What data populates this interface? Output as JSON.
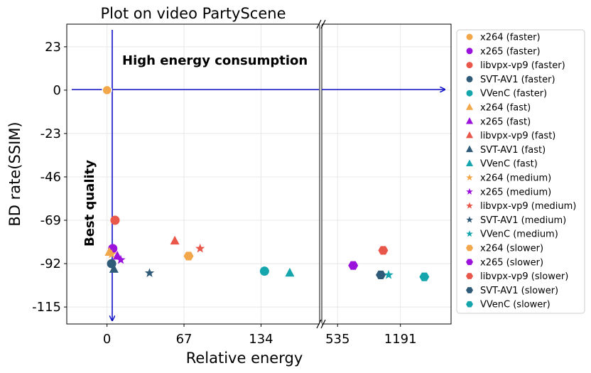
{
  "chart_data": {
    "type": "scatter",
    "title": "Plot on video PartyScene",
    "xlabel": "Relative energy",
    "ylabel": "BD rate(SSIM)",
    "x_axis_broken": true,
    "x_ticks_left": [
      0,
      67,
      134
    ],
    "x_ticks_right": [
      535,
      1191
    ],
    "xlim_left": [
      -35,
      185
    ],
    "xlim_right": [
      370,
      1720
    ],
    "y_ticks": [
      23,
      0,
      -23,
      -46,
      -69,
      -92,
      -115
    ],
    "ylim": [
      -124,
      35
    ],
    "grid": true,
    "legend_position": "outside-right",
    "annotations": [
      "High energy consumption",
      "Best quality"
    ],
    "series": [
      {
        "name": "x264 (faster)",
        "color": "#f2a74b",
        "marker": "circle",
        "points": [
          [
            0,
            0
          ]
        ]
      },
      {
        "name": "x265 (faster)",
        "color": "#9c12dd",
        "marker": "circle",
        "points": [
          [
            5,
            -84
          ]
        ]
      },
      {
        "name": "libvpx-vp9 (faster)",
        "color": "#e8574a",
        "marker": "circle",
        "points": [
          [
            7,
            -69
          ]
        ]
      },
      {
        "name": "SVT-AV1 (faster)",
        "color": "#2f5b78",
        "marker": "circle",
        "points": [
          [
            4,
            -92
          ]
        ]
      },
      {
        "name": "VVenC (faster)",
        "color": "#14a5ad",
        "marker": "circle",
        "points": [
          [
            137,
            -96
          ]
        ]
      },
      {
        "name": "x264 (fast)",
        "color": "#f2a74b",
        "marker": "triangle",
        "points": [
          [
            2,
            -86
          ]
        ]
      },
      {
        "name": "x265 (fast)",
        "color": "#9c12dd",
        "marker": "triangle",
        "points": [
          [
            9,
            -88
          ]
        ]
      },
      {
        "name": "libvpx-vp9 (fast)",
        "color": "#e8574a",
        "marker": "triangle",
        "points": [
          [
            59,
            -80
          ]
        ]
      },
      {
        "name": "SVT-AV1 (fast)",
        "color": "#2f5b78",
        "marker": "triangle",
        "points": [
          [
            6,
            -95
          ]
        ]
      },
      {
        "name": "VVenC (fast)",
        "color": "#14a5ad",
        "marker": "triangle",
        "points": [
          [
            159,
            -97
          ]
        ]
      },
      {
        "name": "x264 (medium)",
        "color": "#f2a74b",
        "marker": "star",
        "points": [
          [
            4,
            -87
          ]
        ]
      },
      {
        "name": "x265 (medium)",
        "color": "#9c12dd",
        "marker": "star",
        "points": [
          [
            12,
            -90
          ]
        ]
      },
      {
        "name": "libvpx-vp9 (medium)",
        "color": "#e8574a",
        "marker": "star",
        "points": [
          [
            81,
            -84
          ]
        ]
      },
      {
        "name": "SVT-AV1 (medium)",
        "color": "#2f5b78",
        "marker": "star",
        "points": [
          [
            37,
            -97
          ]
        ]
      },
      {
        "name": "VVenC (medium)",
        "color": "#14a5ad",
        "marker": "star",
        "points": [
          [
            1068,
            -98
          ]
        ]
      },
      {
        "name": "x264 (slower)",
        "color": "#f2a74b",
        "marker": "hexagon",
        "points": [
          [
            71,
            -88
          ]
        ]
      },
      {
        "name": "x265 (slower)",
        "color": "#9c12dd",
        "marker": "hexagon",
        "points": [
          [
            698,
            -93
          ]
        ]
      },
      {
        "name": "libvpx-vp9 (slower)",
        "color": "#e8574a",
        "marker": "hexagon",
        "points": [
          [
            1011,
            -85
          ]
        ]
      },
      {
        "name": "SVT-AV1 (slower)",
        "color": "#2f5b78",
        "marker": "hexagon",
        "points": [
          [
            986,
            -98
          ]
        ]
      },
      {
        "name": "VVenC (slower)",
        "color": "#14a5ad",
        "marker": "hexagon",
        "points": [
          [
            1441,
            -99
          ]
        ]
      }
    ]
  }
}
